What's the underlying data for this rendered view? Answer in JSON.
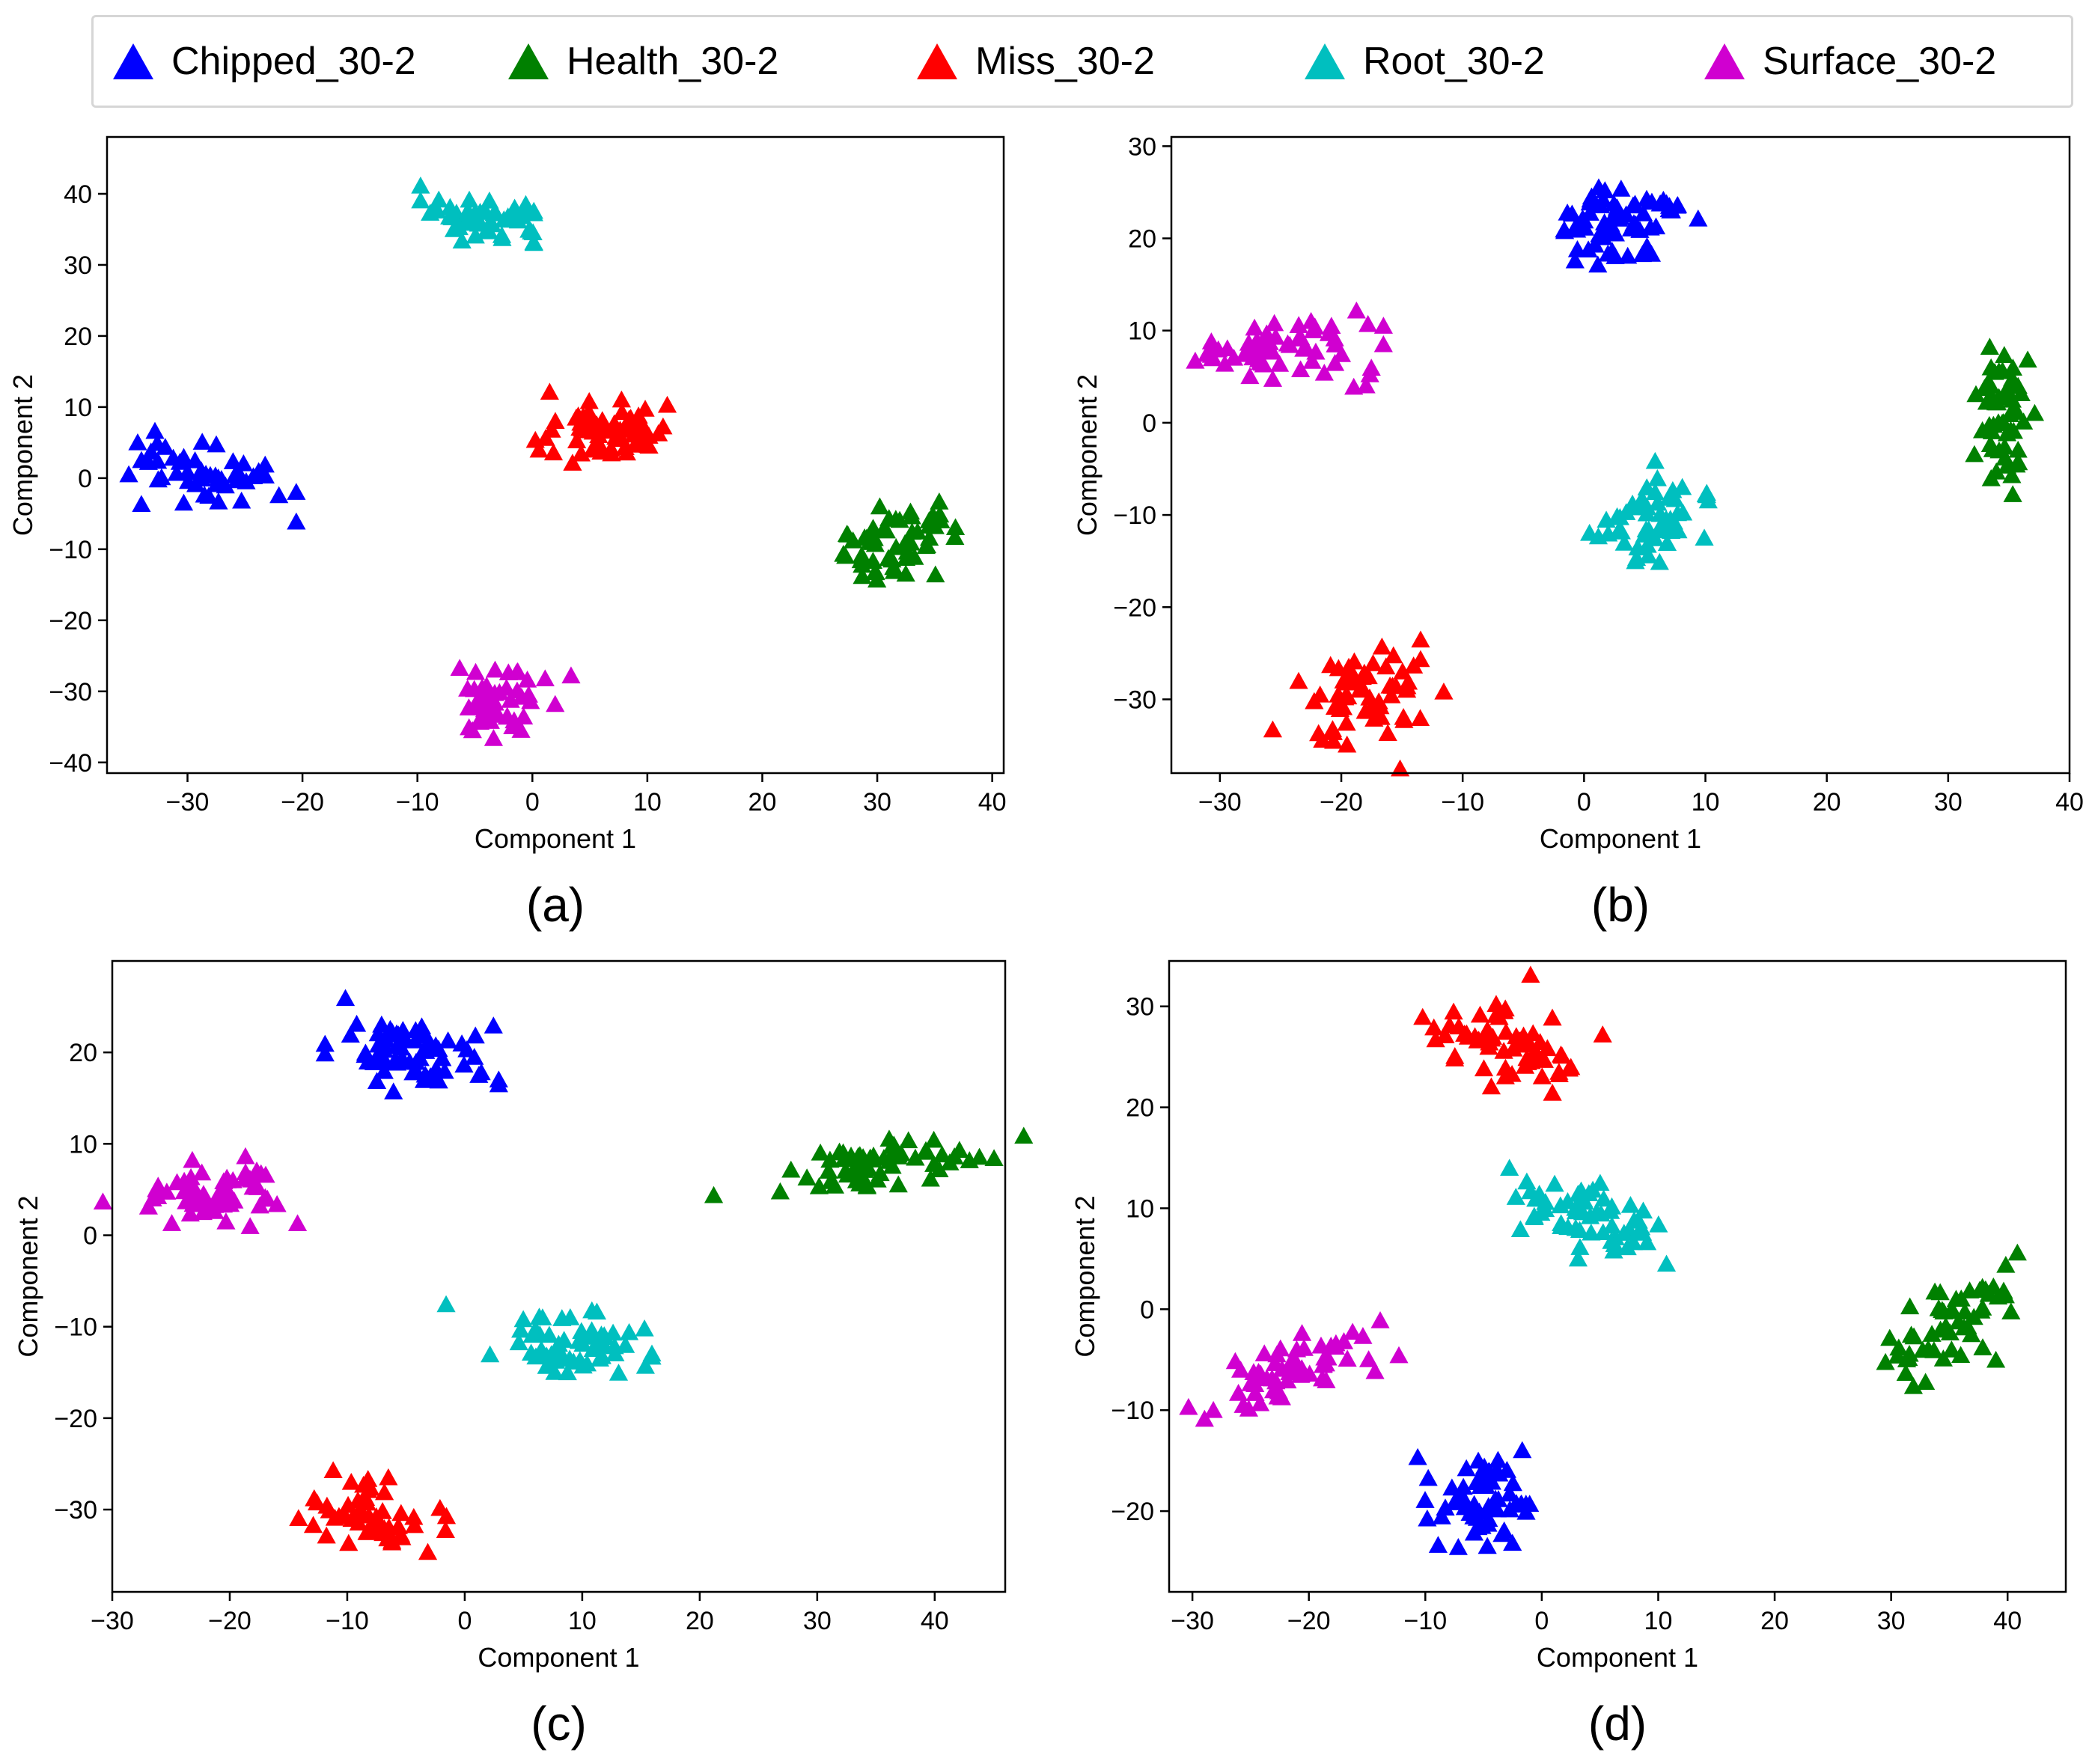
{
  "legend": {
    "entries": [
      {
        "label": "Chipped_30-2",
        "color": "#0000ff"
      },
      {
        "label": "Health_30-2",
        "color": "#008000"
      },
      {
        "label": "Miss_30-2",
        "color": "#ff0000"
      },
      {
        "label": "Root_30-2",
        "color": "#00bfbf"
      },
      {
        "label": "Surface_30-2",
        "color": "#d000d0"
      }
    ]
  },
  "chart_data": [
    {
      "type": "scatter",
      "panel_label": "(a)",
      "xlabel": "Component 1",
      "ylabel": "Component 2",
      "xlim": [
        -37,
        41
      ],
      "ylim": [
        -41.5,
        48
      ],
      "xticks": [
        -30,
        -20,
        -10,
        0,
        10,
        20,
        30,
        40
      ],
      "yticks": [
        -40,
        -30,
        -20,
        -10,
        0,
        10,
        20,
        30,
        40
      ],
      "xtick_labels": [
        "−30",
        "−20",
        "−10",
        "0",
        "10",
        "20",
        "30",
        "40"
      ],
      "ytick_labels": [
        "−40",
        "−30",
        "−20",
        "−10",
        "0",
        "10",
        "20",
        "30",
        "40"
      ],
      "marker": "triangle",
      "series": [
        {
          "name": "Chipped_30-2",
          "color": "#0000ff",
          "clusters": [
            {
              "cx": -29,
              "cy": 0.5,
              "sx": 3.3,
              "sy": 2.3,
              "tilt": -0.35,
              "n": 50
            }
          ]
        },
        {
          "name": "Health_30-2",
          "color": "#008000",
          "clusters": [
            {
              "cx": 31.5,
              "cy": -9,
              "sx": 3.2,
              "sy": 2.2,
              "tilt": 0.85,
              "n": 55
            }
          ]
        },
        {
          "name": "Miss_30-2",
          "color": "#ff0000",
          "clusters": [
            {
              "cx": 6.3,
              "cy": 6.5,
              "sx": 2.6,
              "sy": 2.2,
              "tilt": 0.2,
              "n": 65
            }
          ]
        },
        {
          "name": "Root_30-2",
          "color": "#00bfbf",
          "clusters": [
            {
              "cx": -4.8,
              "cy": 36.5,
              "sx": 1.4,
              "sy": 3.4,
              "tilt": 1.2,
              "n": 55
            }
          ]
        },
        {
          "name": "Surface_30-2",
          "color": "#d000d0",
          "clusters": [
            {
              "cx": -3,
              "cy": -31,
              "sx": 2.4,
              "sy": 2.6,
              "tilt": -0.9,
              "n": 50
            }
          ]
        }
      ]
    },
    {
      "type": "scatter",
      "panel_label": "(b)",
      "xlabel": "Component 1",
      "ylabel": "Component 2",
      "xlim": [
        -34,
        40
      ],
      "ylim": [
        -38,
        31
      ],
      "xticks": [
        -30,
        -20,
        -10,
        0,
        10,
        20,
        30,
        40
      ],
      "yticks": [
        -30,
        -20,
        -10,
        0,
        10,
        20,
        30
      ],
      "xtick_labels": [
        "−30",
        "−20",
        "−10",
        "0",
        "10",
        "20",
        "30",
        "40"
      ],
      "ytick_labels": [
        "−30",
        "−20",
        "−10",
        "0",
        "10",
        "20",
        "30"
      ],
      "marker": "triangle",
      "series": [
        {
          "name": "Chipped_30-2",
          "color": "#0000ff",
          "clusters": [
            {
              "cx": 3,
              "cy": 21.5,
              "sx": 2.9,
              "sy": 2.2,
              "tilt": 0.1,
              "n": 65
            }
          ]
        },
        {
          "name": "Health_30-2",
          "color": "#008000",
          "clusters": [
            {
              "cx": 34.5,
              "cy": 0.5,
              "sx": 1.3,
              "sy": 3.9,
              "tilt": 0,
              "n": 55
            }
          ]
        },
        {
          "name": "Miss_30-2",
          "color": "#ff0000",
          "clusters": [
            {
              "cx": -18,
              "cy": -29.5,
              "sx": 2.2,
              "sy": 2.8,
              "tilt": -0.8,
              "n": 60
            }
          ]
        },
        {
          "name": "Root_30-2",
          "color": "#00bfbf",
          "clusters": [
            {
              "cx": 5.5,
              "cy": -10,
              "sx": 2.2,
              "sy": 2.8,
              "tilt": -0.7,
              "n": 55
            }
          ]
        },
        {
          "name": "Surface_30-2",
          "color": "#d000d0",
          "clusters": [
            {
              "cx": -24,
              "cy": 8,
              "sx": 4.3,
              "sy": 1.6,
              "tilt": 0,
              "n": 60
            }
          ]
        }
      ]
    },
    {
      "type": "scatter",
      "panel_label": "(c)",
      "xlabel": "Component 1",
      "ylabel": "Component 2",
      "xlim": [
        -30,
        46
      ],
      "ylim": [
        -39,
        30
      ],
      "xticks": [
        -30,
        -20,
        -10,
        0,
        10,
        20,
        30,
        40
      ],
      "yticks": [
        -30,
        -20,
        -10,
        0,
        10,
        20
      ],
      "xtick_labels": [
        "−30",
        "−20",
        "−10",
        "0",
        "10",
        "20",
        "30",
        "40"
      ],
      "ytick_labels": [
        "−30",
        "−20",
        "−10",
        "0",
        "10",
        "20"
      ],
      "marker": "triangle",
      "series": [
        {
          "name": "Chipped_30-2",
          "color": "#0000ff",
          "clusters": [
            {
              "cx": -4.5,
              "cy": 20,
              "sx": 2.1,
              "sy": 3.3,
              "tilt": 1.3,
              "n": 70
            }
          ]
        },
        {
          "name": "Health_30-2",
          "color": "#008000",
          "clusters": [
            {
              "cx": 35.5,
              "cy": 7.8,
              "sx": 4.6,
              "sy": 1.2,
              "tilt": 0.25,
              "n": 65
            }
          ]
        },
        {
          "name": "Miss_30-2",
          "color": "#ff0000",
          "clusters": [
            {
              "cx": -8,
              "cy": -31,
              "sx": 3.4,
              "sy": 1.6,
              "tilt": -0.3,
              "n": 55
            }
          ]
        },
        {
          "name": "Root_30-2",
          "color": "#00bfbf",
          "clusters": [
            {
              "cx": 9.5,
              "cy": -12,
              "sx": 3.4,
              "sy": 1.8,
              "tilt": -0.2,
              "n": 60
            }
          ]
        },
        {
          "name": "Surface_30-2",
          "color": "#d000d0",
          "clusters": [
            {
              "cx": -20.5,
              "cy": 4.5,
              "sx": 3.2,
              "sy": 1.7,
              "tilt": 0,
              "n": 60
            }
          ]
        }
      ]
    },
    {
      "type": "scatter",
      "panel_label": "(d)",
      "xlabel": "Component 1",
      "ylabel": "Component 2",
      "xlim": [
        -32,
        45
      ],
      "ylim": [
        -28,
        34.5
      ],
      "xticks": [
        -30,
        -20,
        -10,
        0,
        10,
        20,
        30,
        40
      ],
      "yticks": [
        -20,
        -10,
        0,
        10,
        20,
        30
      ],
      "xtick_labels": [
        "−30",
        "−20",
        "−10",
        "0",
        "10",
        "20",
        "30",
        "40"
      ],
      "ytick_labels": [
        "−20",
        "−10",
        "0",
        "10",
        "20",
        "30"
      ],
      "marker": "triangle",
      "series": [
        {
          "name": "Chipped_30-2",
          "color": "#0000ff",
          "clusters": [
            {
              "cx": -5.5,
              "cy": -19.5,
              "sx": 2.4,
              "sy": 2.4,
              "tilt": 0.6,
              "n": 60
            }
          ]
        },
        {
          "name": "Health_30-2",
          "color": "#008000",
          "clusters": [
            {
              "cx": 35.5,
              "cy": -2,
              "sx": 1.7,
              "sy": 3.8,
              "tilt": -0.7,
              "n": 55
            }
          ]
        },
        {
          "name": "Miss_30-2",
          "color": "#ff0000",
          "clusters": [
            {
              "cx": -3,
              "cy": 26.5,
              "sx": 3.6,
              "sy": 2.2,
              "tilt": -0.45,
              "n": 65
            }
          ]
        },
        {
          "name": "Root_30-2",
          "color": "#00bfbf",
          "clusters": [
            {
              "cx": 3.5,
              "cy": 9.5,
              "sx": 3.3,
              "sy": 1.8,
              "tilt": -0.3,
              "n": 60
            }
          ]
        },
        {
          "name": "Surface_30-2",
          "color": "#d000d0",
          "clusters": [
            {
              "cx": -22,
              "cy": -6,
              "sx": 4.5,
              "sy": 1.5,
              "tilt": 0.4,
              "n": 60
            }
          ]
        }
      ]
    }
  ]
}
